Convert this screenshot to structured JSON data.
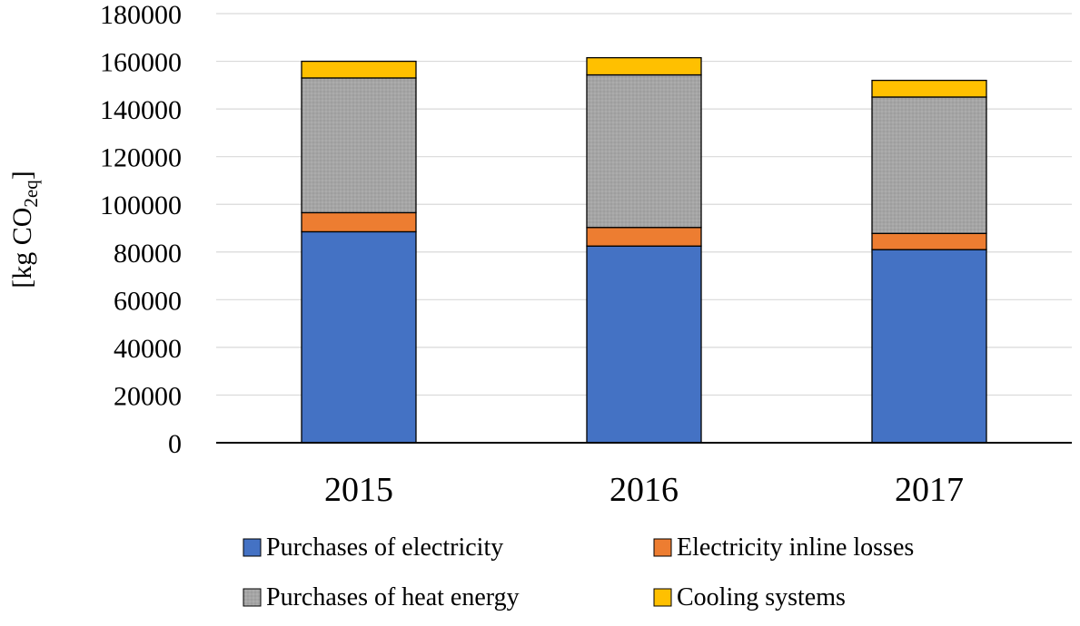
{
  "chart_data": {
    "type": "bar",
    "stacked": true,
    "categories": [
      "2015",
      "2016",
      "2017"
    ],
    "series": [
      {
        "name": "Purchases of electricity",
        "values": [
          88500,
          82500,
          81000
        ],
        "color": "#4472C4"
      },
      {
        "name": "Electricity inline losses",
        "values": [
          8000,
          7800,
          6800
        ],
        "color": "#ED7D31"
      },
      {
        "name": "Purchases of heat energy",
        "values": [
          56500,
          64000,
          57200
        ],
        "color": "#A5A5A5"
      },
      {
        "name": "Cooling systems",
        "values": [
          7000,
          7200,
          7000
        ],
        "color": "#FFC000"
      }
    ],
    "title": "",
    "xlabel": "",
    "ylabel": {
      "main": "[kg CO",
      "sub": "2eq",
      "close": "]"
    },
    "ylim": [
      0,
      180000
    ],
    "yticks": [
      "0",
      "20000",
      "40000",
      "60000",
      "80000",
      "100000",
      "120000",
      "140000",
      "160000",
      "180000"
    ],
    "grid": true,
    "legend_position": "bottom"
  }
}
